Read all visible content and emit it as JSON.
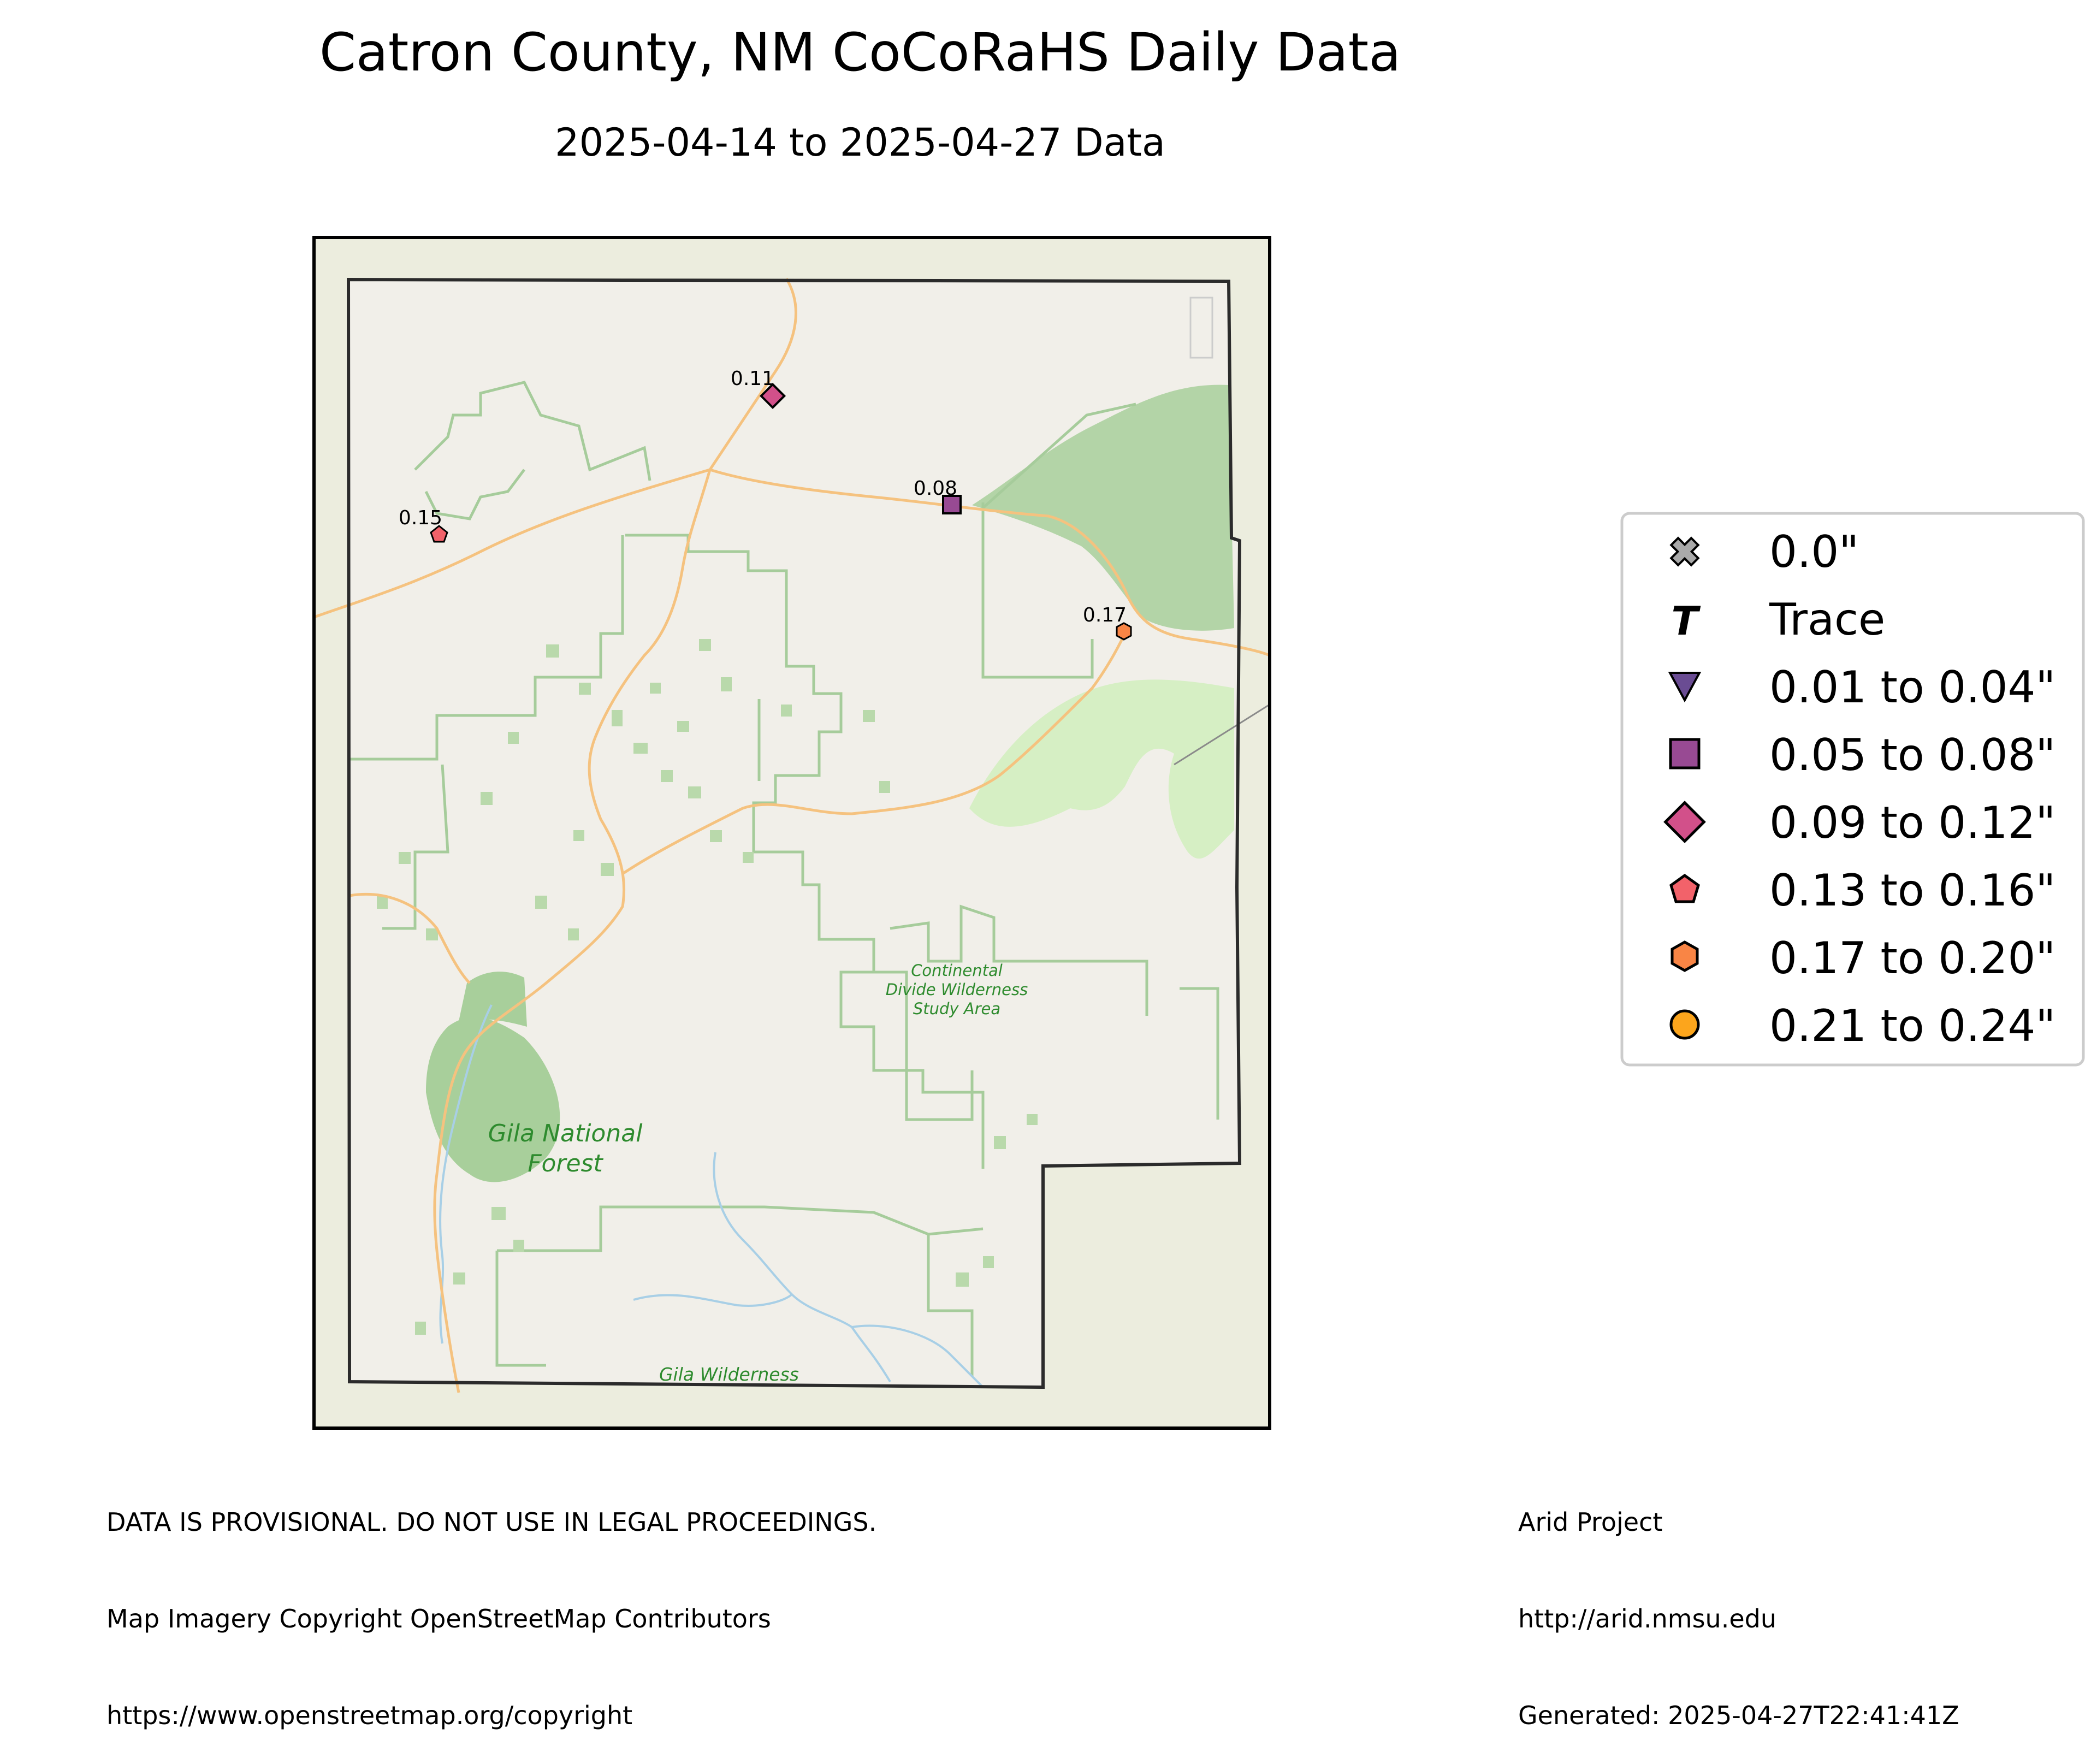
{
  "title": "Catron County, NM CoCoRaHS Daily Data",
  "subtitle": "2025-04-14 to 2025-04-27 Data",
  "map": {
    "labels": {
      "gila_nf_1": "Gila National",
      "gila_nf_2": "Forest",
      "cdwsa_1": "Continental",
      "cdwsa_2": "Divide Wilderness",
      "cdwsa_3": "Study Area",
      "gila_wilderness": "Gila Wilderness"
    },
    "stations": [
      {
        "value": "0.11",
        "category": "0.09 to 0.12\""
      },
      {
        "value": "0.08",
        "category": "0.05 to 0.08\""
      },
      {
        "value": "0.15",
        "category": "0.13 to 0.16\""
      },
      {
        "value": "0.17",
        "category": "0.17 to 0.20\""
      }
    ]
  },
  "legend": {
    "items": [
      {
        "symbol": "x-cross",
        "color": "#a9a9a9",
        "label": "0.0\""
      },
      {
        "symbol": "T",
        "color": "#000000",
        "label": "Trace"
      },
      {
        "symbol": "triangle-down",
        "color": "#6a4c93",
        "label": "0.01 to 0.04\""
      },
      {
        "symbol": "square",
        "color": "#984a93",
        "label": "0.05 to 0.08\""
      },
      {
        "symbol": "diamond",
        "color": "#d2508a",
        "label": "0.09 to 0.12\""
      },
      {
        "symbol": "pentagon",
        "color": "#f2626a",
        "label": "0.13 to 0.16\""
      },
      {
        "symbol": "hexagon",
        "color": "#f98545",
        "label": "0.17 to 0.20\""
      },
      {
        "symbol": "circle",
        "color": "#fca51c",
        "label": "0.21 to 0.24\""
      }
    ]
  },
  "footer": {
    "left": [
      "DATA IS PROVISIONAL. DO NOT USE IN LEGAL PROCEEDINGS.",
      "Map Imagery Copyright OpenStreetMap Contributors",
      "https://www.openstreetmap.org/copyright"
    ],
    "right": [
      "Arid Project",
      "http://arid.nmsu.edu",
      "Generated: 2025-04-27T22:41:41Z"
    ]
  }
}
